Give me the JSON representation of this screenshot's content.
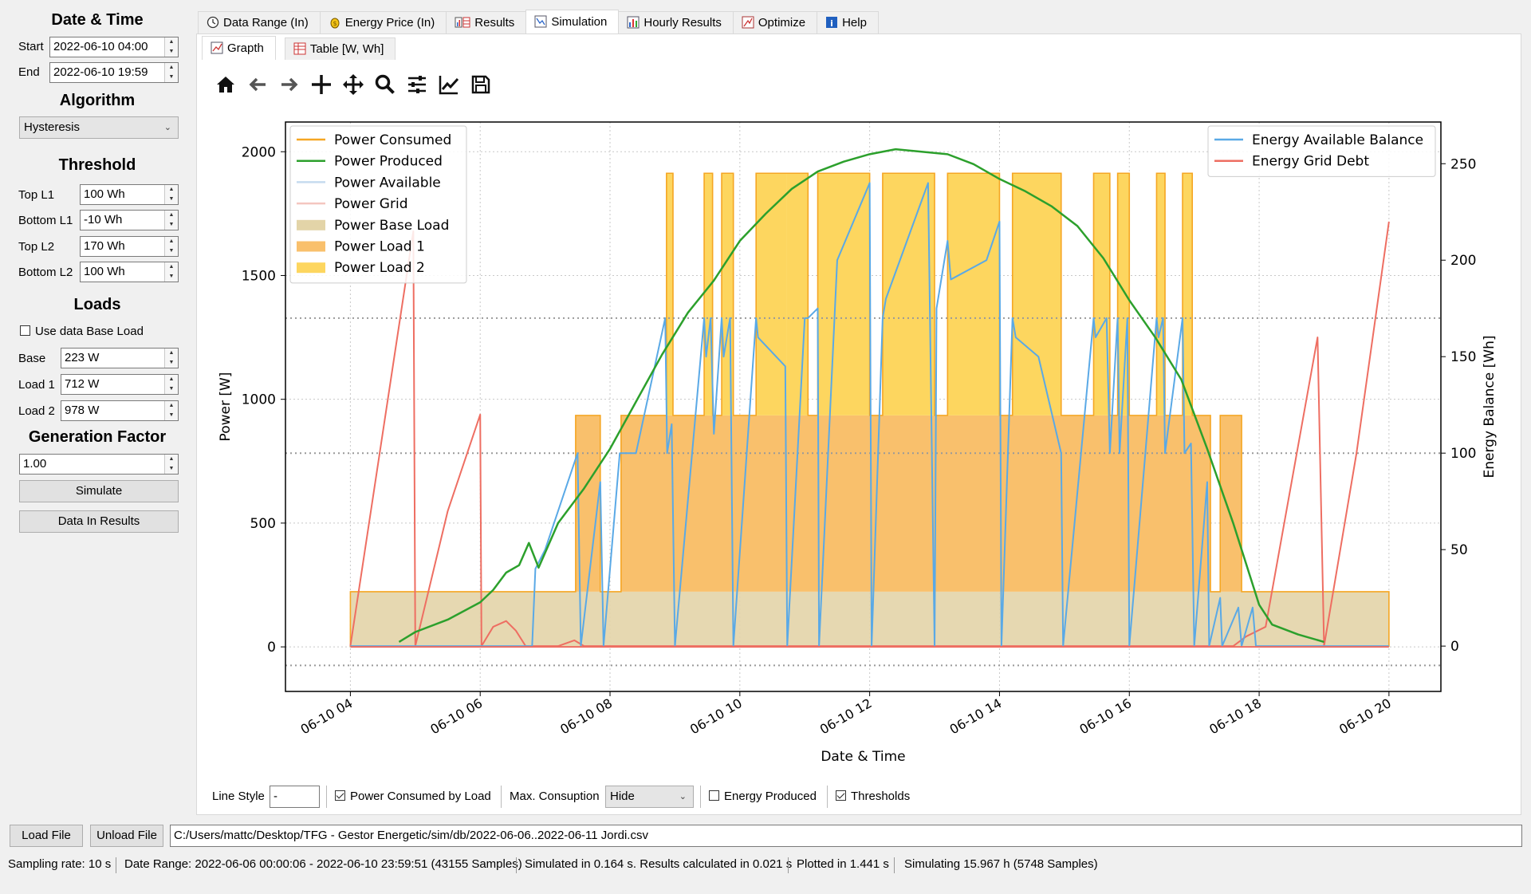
{
  "left": {
    "date_time_title": "Date & Time",
    "start_label": "Start",
    "start_value": "2022-06-10 04:00",
    "end_label": "End",
    "end_value": "2022-06-10 19:59",
    "algorithm_title": "Algorithm",
    "algorithm_value": "Hysteresis",
    "threshold_title": "Threshold",
    "top_l1_label": "Top L1",
    "top_l1_value": "100 Wh",
    "bottom_l1_label": "Bottom L1",
    "bottom_l1_value": "-10 Wh",
    "top_l2_label": "Top L2",
    "top_l2_value": "170 Wh",
    "bottom_l2_label": "Bottom L2",
    "bottom_l2_value": "100 Wh",
    "loads_title": "Loads",
    "use_data_base_load_label": "Use data Base Load",
    "use_data_base_load_checked": false,
    "base_label": "Base",
    "base_value": "223 W",
    "load1_label": "Load 1",
    "load1_value": "712 W",
    "load2_label": "Load 2",
    "load2_value": "978 W",
    "generation_title": "Generation Factor",
    "generation_value": "1.00",
    "simulate_button": "Simulate",
    "data_in_results_button": "Data In Results"
  },
  "tabs": [
    {
      "label": "Data Range (In)",
      "icon": "clock-icon"
    },
    {
      "label": "Energy Price (In)",
      "icon": "coin-icon"
    },
    {
      "label": "Results",
      "icon": "chart-table-icon"
    },
    {
      "label": "Simulation",
      "icon": "simulation-icon",
      "active": true
    },
    {
      "label": "Hourly Results",
      "icon": "bar-chart-icon"
    },
    {
      "label": "Optimize",
      "icon": "optimize-icon"
    },
    {
      "label": "Help",
      "icon": "info-icon"
    }
  ],
  "subtabs": [
    {
      "label": "Grapth",
      "icon": "graph-icon",
      "active": true
    },
    {
      "label": "Table [W, Wh]",
      "icon": "table-icon"
    }
  ],
  "toolbar": [
    "home-icon",
    "back-arrow-icon",
    "forward-arrow-icon",
    "pan-icon",
    "move-icon",
    "zoom-icon",
    "configure-subplots-icon",
    "edit-axis-icon",
    "save-icon"
  ],
  "bottom_controls": {
    "line_style_label": "Line Style",
    "line_style_value": "-",
    "power_consumed_by_load_label": "Power Consumed by Load",
    "power_consumed_by_load_checked": true,
    "max_consumption_label": "Max. Consuption",
    "max_consumption_value": "Hide",
    "energy_produced_label": "Energy Produced",
    "energy_produced_checked": false,
    "thresholds_label": "Thresholds",
    "thresholds_checked": true
  },
  "file_row": {
    "load_file_button": "Load File",
    "unload_file_button": "Unload File",
    "file_path": "C:/Users/mattc/Desktop/TFG - Gestor Energetic/sim/db/2022-06-06..2022-06-11 Jordi.csv"
  },
  "status": {
    "sampling_rate": "Sampling rate: 10 s",
    "date_range": "Date Range: 2022-06-06 00:00:06 - 2022-06-10 23:59:51 (43155 Samples)",
    "simulated": "Simulated in 0.164 s. Results calculated in 0.021 s",
    "plotted": "Plotted in 1.441 s",
    "simulating": "Simulating 15.967 h (5748 Samples)"
  },
  "chart_data": {
    "type": "line",
    "xlabel": "Date & Time",
    "ylabel": "Power [W]",
    "y2label": "Energy Balance [Wh]",
    "xlim": [
      3.0,
      20.8
    ],
    "ylim": [
      -180,
      2120
    ],
    "y2lim": [
      -23.5,
      271.6
    ],
    "xticks": [
      4,
      6,
      8,
      10,
      12,
      14,
      16,
      18,
      20
    ],
    "xtick_labels": [
      "06-10 04",
      "06-10 06",
      "06-10 08",
      "06-10 10",
      "06-10 12",
      "06-10 14",
      "06-10 16",
      "06-10 18",
      "06-10 20"
    ],
    "yticks": [
      0,
      500,
      1000,
      1500,
      2000
    ],
    "y2ticks": [
      0,
      50,
      100,
      150,
      200,
      250
    ],
    "grid": true,
    "threshold_lines_wh": [
      -10,
      100,
      170
    ],
    "legend_left": [
      "Power Consumed",
      "Power Produced",
      "Power Available",
      "Power Grid",
      "Power Base Load",
      "Power Load 1",
      "Power Load 2"
    ],
    "legend_right": [
      "Energy Available Balance",
      "Energy Grid Debt"
    ],
    "colors": {
      "consumed": "#f5a623",
      "produced": "#2ca02c",
      "available": "#c6dbef",
      "grid": "#f4c6c0",
      "base_load": "#e3d4a8",
      "load1": "#f9c06c",
      "load2": "#fdd65f",
      "energy_balance": "#5aa9e6",
      "grid_debt": "#ee6e62"
    },
    "base_load": {
      "start": 4.0,
      "end": 20.0,
      "value": 223
    },
    "load1_intervals": [
      [
        7.47,
        7.85
      ],
      [
        8.17,
        17.25
      ],
      [
        17.4,
        17.73
      ]
    ],
    "load1_value": 712,
    "load2_intervals": [
      [
        8.87,
        8.97
      ],
      [
        9.45,
        9.58
      ],
      [
        9.72,
        9.9
      ],
      [
        10.25,
        10.72
      ],
      [
        10.72,
        11.05
      ],
      [
        11.2,
        12.0
      ],
      [
        12.2,
        13.0
      ],
      [
        13.2,
        14.0
      ],
      [
        14.2,
        14.95
      ],
      [
        15.45,
        15.7
      ],
      [
        15.82,
        16.0
      ],
      [
        16.42,
        16.55
      ],
      [
        16.82,
        16.97
      ]
    ],
    "load2_value": 978,
    "power_produced": {
      "x": [
        4.75,
        5.0,
        5.5,
        6.0,
        6.2,
        6.4,
        6.6,
        6.75,
        6.9,
        7.2,
        7.6,
        8.0,
        8.4,
        8.8,
        9.2,
        9.6,
        10.0,
        10.4,
        10.8,
        11.2,
        11.6,
        12.0,
        12.4,
        12.8,
        13.2,
        13.6,
        14.0,
        14.4,
        14.8,
        15.2,
        15.6,
        16.0,
        16.4,
        16.8,
        17.2,
        17.6,
        18.0,
        18.2,
        18.6,
        19.0
      ],
      "y": [
        20,
        60,
        110,
        180,
        230,
        300,
        330,
        420,
        320,
        500,
        640,
        800,
        990,
        1180,
        1350,
        1480,
        1640,
        1750,
        1850,
        1920,
        1960,
        1990,
        2010,
        2000,
        1990,
        1950,
        1890,
        1840,
        1780,
        1700,
        1570,
        1400,
        1250,
        1080,
        800,
        500,
        170,
        90,
        50,
        20
      ]
    },
    "energy_available_balance": {
      "x": [
        4.0,
        6.8,
        6.85,
        7.0,
        7.5,
        7.55,
        7.85,
        7.9,
        8.15,
        8.2,
        8.4,
        8.85,
        8.88,
        8.95,
        9.0,
        9.45,
        9.48,
        9.55,
        9.6,
        9.72,
        9.75,
        9.85,
        9.9,
        10.25,
        10.28,
        10.7,
        10.73,
        11.0,
        11.05,
        11.2,
        11.22,
        11.5,
        12.0,
        12.03,
        12.2,
        12.25,
        12.9,
        13.0,
        13.03,
        13.2,
        13.25,
        13.8,
        14.0,
        14.03,
        14.2,
        14.25,
        14.6,
        14.95,
        14.98,
        15.45,
        15.48,
        15.65,
        15.7,
        15.82,
        15.85,
        15.97,
        16.0,
        16.42,
        16.45,
        16.52,
        16.55,
        16.82,
        16.85,
        16.95,
        17.0,
        17.2,
        17.23,
        17.4,
        17.43,
        17.68,
        17.73,
        17.9,
        17.95,
        20.0
      ],
      "y": [
        0,
        0,
        40,
        50,
        100,
        0,
        85,
        0,
        100,
        100,
        100,
        170,
        100,
        115,
        0,
        170,
        150,
        170,
        110,
        170,
        150,
        170,
        0,
        170,
        160,
        145,
        0,
        170,
        170,
        175,
        0,
        200,
        240,
        0,
        170,
        180,
        240,
        0,
        175,
        210,
        190,
        200,
        220,
        0,
        170,
        160,
        150,
        100,
        0,
        170,
        160,
        170,
        100,
        170,
        100,
        170,
        0,
        170,
        160,
        170,
        100,
        170,
        100,
        105,
        0,
        85,
        0,
        25,
        0,
        20,
        0,
        20,
        0,
        0
      ]
    },
    "energy_grid_debt": {
      "x": [
        4.0,
        4.97,
        5.0,
        5.5,
        6.0,
        6.02,
        6.2,
        6.4,
        6.55,
        6.7,
        7.0,
        7.2,
        7.45,
        7.6,
        7.85,
        8.0,
        17.6,
        17.8,
        18.1,
        18.9,
        19.0,
        19.5,
        20.0
      ],
      "y": [
        0,
        215,
        0,
        70,
        120,
        0,
        10,
        13,
        8,
        0,
        0,
        0,
        3,
        0,
        0,
        0,
        0,
        5,
        10,
        160,
        0,
        100,
        220
      ]
    }
  }
}
